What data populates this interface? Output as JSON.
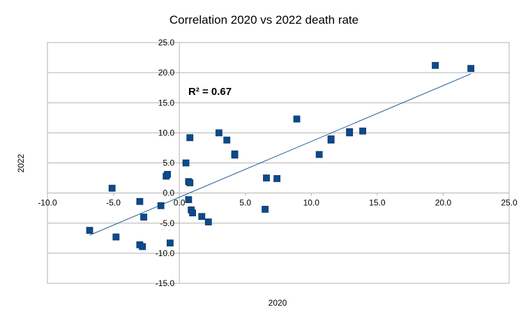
{
  "chart_data": {
    "type": "scatter",
    "title": "Correlation 2020 vs 2022 death rate",
    "xlabel": "2020",
    "ylabel": "2022",
    "xlim": [
      -10,
      25
    ],
    "ylim": [
      -15,
      25
    ],
    "xticks": [
      "-10.0",
      "-5.0",
      "0.0",
      "5.0",
      "10.0",
      "15.0",
      "20.0",
      "25.0"
    ],
    "yticks": [
      "25.0",
      "20.0",
      "15.0",
      "10.0",
      "5.0",
      "0.0",
      "-5.0",
      "-10.0",
      "-15.0"
    ],
    "grid": "horizontal",
    "legend": "none",
    "annotation": "R² = 0.67",
    "marker_color": "#0d4a8a",
    "trendline_color": "#1f5a96",
    "trendline": {
      "x": [
        -6.8,
        22.1
      ],
      "y": [
        -7.0,
        19.8
      ]
    },
    "points": [
      {
        "x": 19.4,
        "y": 21.2
      },
      {
        "x": 22.1,
        "y": 20.7
      },
      {
        "x": 8.9,
        "y": 12.3
      },
      {
        "x": 3.0,
        "y": 10.0
      },
      {
        "x": 3.6,
        "y": 8.8
      },
      {
        "x": 0.8,
        "y": 9.2
      },
      {
        "x": 4.2,
        "y": 6.5
      },
      {
        "x": 4.2,
        "y": 6.3
      },
      {
        "x": 10.6,
        "y": 6.4
      },
      {
        "x": 11.5,
        "y": 8.8
      },
      {
        "x": 11.5,
        "y": 9.0
      },
      {
        "x": 12.9,
        "y": 10.2
      },
      {
        "x": 12.9,
        "y": 10.0
      },
      {
        "x": 13.9,
        "y": 10.3
      },
      {
        "x": 0.5,
        "y": 5.0
      },
      {
        "x": -1.0,
        "y": 2.8
      },
      {
        "x": -0.9,
        "y": 3.1
      },
      {
        "x": 0.7,
        "y": 1.9
      },
      {
        "x": 0.8,
        "y": 1.7
      },
      {
        "x": 6.6,
        "y": 2.5
      },
      {
        "x": 7.4,
        "y": 2.4
      },
      {
        "x": -5.1,
        "y": 0.8
      },
      {
        "x": -3.0,
        "y": -1.4
      },
      {
        "x": -1.4,
        "y": -2.1
      },
      {
        "x": 0.7,
        "y": -1.1
      },
      {
        "x": 0.9,
        "y": -2.8
      },
      {
        "x": 1.0,
        "y": -3.3
      },
      {
        "x": 1.7,
        "y": -3.9
      },
      {
        "x": 2.2,
        "y": -4.8
      },
      {
        "x": 6.5,
        "y": -2.7
      },
      {
        "x": -2.7,
        "y": -4.0
      },
      {
        "x": -6.8,
        "y": -6.2
      },
      {
        "x": -4.8,
        "y": -7.3
      },
      {
        "x": -3.0,
        "y": -8.6
      },
      {
        "x": -2.8,
        "y": -8.9
      },
      {
        "x": -0.7,
        "y": -8.3
      }
    ]
  }
}
